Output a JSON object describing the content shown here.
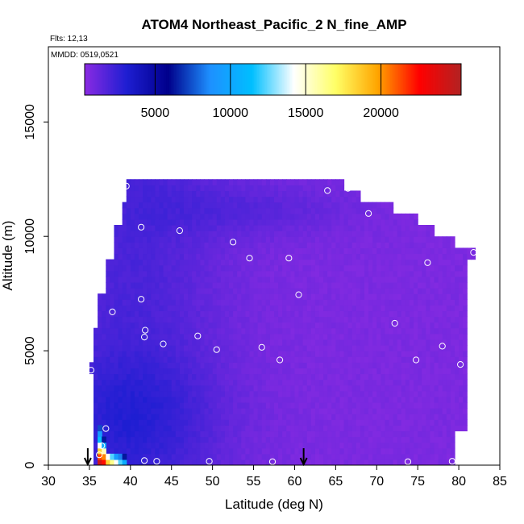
{
  "chart_data": {
    "type": "heatmap",
    "title": "ATOM4 Northeast_Pacific_2 N_fine_AMP",
    "flights_label": "Flts: 12,13",
    "date_label": "MMDD: 0519,0521",
    "xlabel": "Latitude (deg N)",
    "ylabel": "Altitude (m)",
    "xlim": [
      30,
      85
    ],
    "ylim": [
      0,
      17500
    ],
    "xticks": [
      30,
      35,
      40,
      45,
      50,
      55,
      60,
      65,
      70,
      75,
      80,
      85
    ],
    "yticks": [
      0,
      5000,
      10000,
      15000
    ],
    "colorbar": {
      "range": [
        0,
        25000
      ],
      "ticks": [
        5000,
        10000,
        15000,
        20000
      ],
      "colors": [
        "#8a2be2",
        "#1e1ed2",
        "#00008b",
        "#1e90ff",
        "#00bfff",
        "#ffffff",
        "#ffff66",
        "#ffa500",
        "#ff0000",
        "#b22222"
      ]
    },
    "column_bounds": [
      {
        "x0": 35.0,
        "x1": 35.5,
        "ymin": 4000,
        "ymax": 4500
      },
      {
        "x0": 35.5,
        "x1": 36.0,
        "ymin": 0,
        "ymax": 6000
      },
      {
        "x0": 36.0,
        "x1": 37.0,
        "ymin": 0,
        "ymax": 7500
      },
      {
        "x0": 37.0,
        "x1": 38.0,
        "ymin": 0,
        "ymax": 9000
      },
      {
        "x0": 38.0,
        "x1": 39.0,
        "ymin": 0,
        "ymax": 10500
      },
      {
        "x0": 39.0,
        "x1": 39.5,
        "ymin": 0,
        "ymax": 11500
      },
      {
        "x0": 39.5,
        "x1": 66.0,
        "ymin": 0,
        "ymax": 12500
      },
      {
        "x0": 66.0,
        "x1": 68.0,
        "ymin": 0,
        "ymax": 12000
      },
      {
        "x0": 68.0,
        "x1": 72.0,
        "ymin": 0,
        "ymax": 11500
      },
      {
        "x0": 72.0,
        "x1": 75.0,
        "ymin": 0,
        "ymax": 11000
      },
      {
        "x0": 75.0,
        "x1": 77.0,
        "ymin": 0,
        "ymax": 10500
      },
      {
        "x0": 77.0,
        "x1": 79.5,
        "ymin": 0,
        "ymax": 10000
      },
      {
        "x0": 79.5,
        "x1": 81.0,
        "ymin": 1500,
        "ymax": 9500
      },
      {
        "x0": 81.0,
        "x1": 82.0,
        "ymin": 9000,
        "ymax": 9500
      }
    ],
    "surface_hotspot": [
      {
        "x": 36.0,
        "values": [
          24000,
          21000,
          18000,
          14000,
          11000,
          9000,
          7000
        ]
      },
      {
        "x": 36.5,
        "values": [
          22000,
          20000,
          15000,
          10000,
          6000
        ]
      },
      {
        "x": 37.0,
        "values": [
          18000,
          14000
        ]
      },
      {
        "x": 37.5,
        "values": [
          16000,
          12000
        ]
      },
      {
        "x": 38.0,
        "values": [
          14000,
          9000
        ]
      },
      {
        "x": 38.5,
        "values": [
          12000,
          8000
        ]
      },
      {
        "x": 39.0,
        "values": [
          10000,
          6000
        ]
      }
    ],
    "sample_points": [
      {
        "x": 39.5,
        "y": 12200
      },
      {
        "x": 64.0,
        "y": 12000
      },
      {
        "x": 66.5,
        "y": 12100
      },
      {
        "x": 41.3,
        "y": 10400
      },
      {
        "x": 46.0,
        "y": 10250
      },
      {
        "x": 69.0,
        "y": 11000
      },
      {
        "x": 52.5,
        "y": 9750
      },
      {
        "x": 54.5,
        "y": 9050
      },
      {
        "x": 59.3,
        "y": 9050
      },
      {
        "x": 76.2,
        "y": 8850
      },
      {
        "x": 81.8,
        "y": 9300
      },
      {
        "x": 60.5,
        "y": 7450
      },
      {
        "x": 41.3,
        "y": 7250
      },
      {
        "x": 37.8,
        "y": 6700
      },
      {
        "x": 72.2,
        "y": 6200
      },
      {
        "x": 41.8,
        "y": 5900
      },
      {
        "x": 41.7,
        "y": 5600
      },
      {
        "x": 48.2,
        "y": 5650
      },
      {
        "x": 44.0,
        "y": 5300
      },
      {
        "x": 50.5,
        "y": 5050
      },
      {
        "x": 56.0,
        "y": 5150
      },
      {
        "x": 78.0,
        "y": 5200
      },
      {
        "x": 58.2,
        "y": 4600
      },
      {
        "x": 74.8,
        "y": 4600
      },
      {
        "x": 80.2,
        "y": 4400
      },
      {
        "x": 35.2,
        "y": 4150
      },
      {
        "x": 37.0,
        "y": 1600
      },
      {
        "x": 36.5,
        "y": 850
      },
      {
        "x": 36.2,
        "y": 450
      },
      {
        "x": 41.7,
        "y": 200
      },
      {
        "x": 43.2,
        "y": 170
      },
      {
        "x": 49.6,
        "y": 170
      },
      {
        "x": 57.3,
        "y": 150
      },
      {
        "x": 73.8,
        "y": 150
      },
      {
        "x": 79.2,
        "y": 170
      }
    ],
    "arrows_x": [
      34.8,
      61.1
    ]
  }
}
